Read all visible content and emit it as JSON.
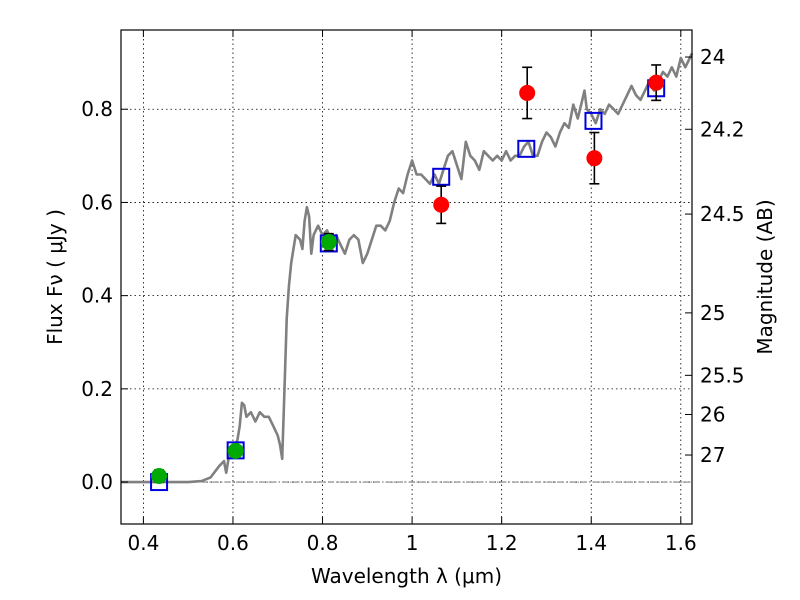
{
  "chart_data": {
    "type": "scatter",
    "xlabel": "Wavelength  λ (μm)",
    "ylabel": "Flux  Fν  ( μJy )",
    "y2label": "Magnitude (AB)",
    "xlim": [
      0.35,
      1.625
    ],
    "ylim": [
      -0.09,
      0.97
    ],
    "grid": true,
    "x_ticks": [
      {
        "value": 0.4,
        "label": "0.4"
      },
      {
        "value": 0.6,
        "label": "0.6"
      },
      {
        "value": 0.8,
        "label": "0.8"
      },
      {
        "value": 1.0,
        "label": "1"
      },
      {
        "value": 1.2,
        "label": "1.2"
      },
      {
        "value": 1.4,
        "label": "1.4"
      },
      {
        "value": 1.6,
        "label": "1.6"
      }
    ],
    "y_ticks": [
      {
        "value": 0.0,
        "label": "0.0"
      },
      {
        "value": 0.2,
        "label": "0.2"
      },
      {
        "value": 0.4,
        "label": "0.4"
      },
      {
        "value": 0.6,
        "label": "0.6"
      },
      {
        "value": 0.8,
        "label": "0.8"
      }
    ],
    "y2_ticks": [
      {
        "flux": 0.912,
        "label": "24"
      },
      {
        "flux": 0.757,
        "label": "24.2"
      },
      {
        "flux": 0.575,
        "label": "24.5"
      },
      {
        "flux": 0.363,
        "label": "25"
      },
      {
        "flux": 0.229,
        "label": "25.5"
      },
      {
        "flux": 0.145,
        "label": "26"
      },
      {
        "flux": 0.058,
        "label": "27"
      }
    ],
    "series": [
      {
        "kind": "template_sed",
        "color": "#808080",
        "points": [
          [
            0.35,
            0.0
          ],
          [
            0.4,
            0.0
          ],
          [
            0.45,
            0.0
          ],
          [
            0.5,
            0.0
          ],
          [
            0.53,
            0.002
          ],
          [
            0.55,
            0.01
          ],
          [
            0.57,
            0.035
          ],
          [
            0.58,
            0.045
          ],
          [
            0.585,
            0.02
          ],
          [
            0.59,
            0.05
          ],
          [
            0.6,
            0.07
          ],
          [
            0.61,
            0.09
          ],
          [
            0.615,
            0.12
          ],
          [
            0.62,
            0.17
          ],
          [
            0.625,
            0.165
          ],
          [
            0.63,
            0.14
          ],
          [
            0.64,
            0.15
          ],
          [
            0.65,
            0.13
          ],
          [
            0.66,
            0.15
          ],
          [
            0.67,
            0.14
          ],
          [
            0.68,
            0.14
          ],
          [
            0.69,
            0.12
          ],
          [
            0.7,
            0.1
          ],
          [
            0.705,
            0.08
          ],
          [
            0.71,
            0.05
          ],
          [
            0.715,
            0.2
          ],
          [
            0.72,
            0.35
          ],
          [
            0.725,
            0.42
          ],
          [
            0.73,
            0.47
          ],
          [
            0.74,
            0.53
          ],
          [
            0.75,
            0.52
          ],
          [
            0.755,
            0.5
          ],
          [
            0.76,
            0.56
          ],
          [
            0.765,
            0.59
          ],
          [
            0.77,
            0.57
          ],
          [
            0.775,
            0.49
          ],
          [
            0.78,
            0.53
          ],
          [
            0.79,
            0.55
          ],
          [
            0.8,
            0.53
          ],
          [
            0.81,
            0.54
          ],
          [
            0.82,
            0.52
          ],
          [
            0.83,
            0.53
          ],
          [
            0.84,
            0.51
          ],
          [
            0.85,
            0.49
          ],
          [
            0.86,
            0.52
          ],
          [
            0.87,
            0.53
          ],
          [
            0.88,
            0.52
          ],
          [
            0.89,
            0.47
          ],
          [
            0.9,
            0.49
          ],
          [
            0.91,
            0.52
          ],
          [
            0.92,
            0.55
          ],
          [
            0.93,
            0.55
          ],
          [
            0.94,
            0.54
          ],
          [
            0.95,
            0.56
          ],
          [
            0.96,
            0.6
          ],
          [
            0.97,
            0.63
          ],
          [
            0.98,
            0.62
          ],
          [
            0.99,
            0.66
          ],
          [
            1.0,
            0.69
          ],
          [
            1.01,
            0.66
          ],
          [
            1.02,
            0.66
          ],
          [
            1.03,
            0.65
          ],
          [
            1.04,
            0.64
          ],
          [
            1.05,
            0.66
          ],
          [
            1.06,
            0.64
          ],
          [
            1.07,
            0.67
          ],
          [
            1.08,
            0.7
          ],
          [
            1.09,
            0.71
          ],
          [
            1.1,
            0.68
          ],
          [
            1.11,
            0.65
          ],
          [
            1.12,
            0.73
          ],
          [
            1.13,
            0.7
          ],
          [
            1.14,
            0.69
          ],
          [
            1.15,
            0.67
          ],
          [
            1.16,
            0.71
          ],
          [
            1.17,
            0.7
          ],
          [
            1.18,
            0.69
          ],
          [
            1.19,
            0.7
          ],
          [
            1.2,
            0.69
          ],
          [
            1.21,
            0.71
          ],
          [
            1.22,
            0.69
          ],
          [
            1.23,
            0.7
          ],
          [
            1.24,
            0.7
          ],
          [
            1.25,
            0.72
          ],
          [
            1.26,
            0.73
          ],
          [
            1.27,
            0.7
          ],
          [
            1.28,
            0.7
          ],
          [
            1.29,
            0.73
          ],
          [
            1.3,
            0.75
          ],
          [
            1.31,
            0.74
          ],
          [
            1.32,
            0.72
          ],
          [
            1.33,
            0.75
          ],
          [
            1.34,
            0.77
          ],
          [
            1.35,
            0.76
          ],
          [
            1.36,
            0.81
          ],
          [
            1.37,
            0.78
          ],
          [
            1.38,
            0.82
          ],
          [
            1.385,
            0.84
          ],
          [
            1.39,
            0.8
          ],
          [
            1.4,
            0.79
          ],
          [
            1.41,
            0.77
          ],
          [
            1.42,
            0.8
          ],
          [
            1.43,
            0.79
          ],
          [
            1.44,
            0.81
          ],
          [
            1.45,
            0.8
          ],
          [
            1.46,
            0.79
          ],
          [
            1.47,
            0.81
          ],
          [
            1.48,
            0.83
          ],
          [
            1.49,
            0.85
          ],
          [
            1.5,
            0.83
          ],
          [
            1.51,
            0.82
          ],
          [
            1.52,
            0.84
          ],
          [
            1.53,
            0.86
          ],
          [
            1.54,
            0.84
          ],
          [
            1.55,
            0.86
          ],
          [
            1.56,
            0.88
          ],
          [
            1.57,
            0.87
          ],
          [
            1.58,
            0.89
          ],
          [
            1.59,
            0.87
          ],
          [
            1.6,
            0.91
          ],
          [
            1.61,
            0.89
          ],
          [
            1.62,
            0.91
          ],
          [
            1.625,
            0.92
          ]
        ]
      },
      {
        "kind": "model_points",
        "marker": "open-square",
        "color": "#0000dd",
        "points": [
          [
            0.435,
            0.0
          ],
          [
            0.606,
            0.068
          ],
          [
            0.814,
            0.512
          ],
          [
            1.065,
            0.655
          ],
          [
            1.255,
            0.715
          ],
          [
            1.405,
            0.775
          ],
          [
            1.545,
            0.845
          ]
        ]
      },
      {
        "kind": "observed_green",
        "marker": "filled-circle",
        "color": "#00aa00",
        "points": [
          {
            "x": 0.435,
            "y": 0.013,
            "err": 0.013
          },
          {
            "x": 0.606,
            "y": 0.067,
            "err": 0.011
          },
          {
            "x": 0.814,
            "y": 0.515,
            "err": 0.018
          }
        ]
      },
      {
        "kind": "observed_red",
        "marker": "filled-circle",
        "color": "#ff0000",
        "points": [
          {
            "x": 1.065,
            "y": 0.595,
            "err": 0.04
          },
          {
            "x": 1.257,
            "y": 0.835,
            "err": 0.055
          },
          {
            "x": 1.407,
            "y": 0.695,
            "err": 0.055
          },
          {
            "x": 1.545,
            "y": 0.857,
            "err": 0.038
          }
        ]
      }
    ]
  }
}
